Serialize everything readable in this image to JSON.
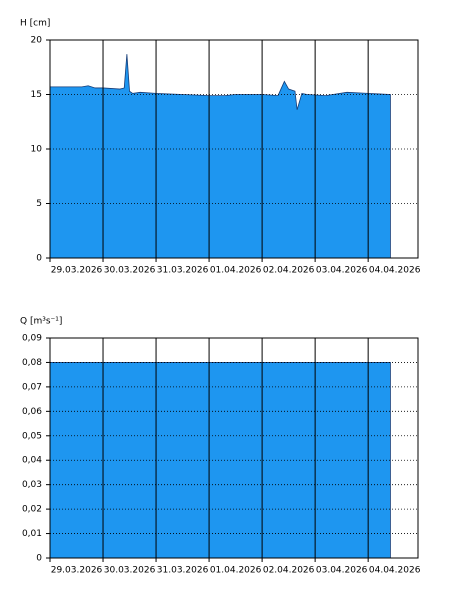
{
  "chart_data": [
    {
      "type": "area",
      "y_label": "H [cm]",
      "color": "#1e96f0",
      "grid": true,
      "x": [
        0,
        0.6,
        0.72,
        0.85,
        1.0,
        1.32,
        1.4,
        1.45,
        1.5,
        1.56,
        1.7,
        2.0,
        2.5,
        3.0,
        3.3,
        3.5,
        4.0,
        4.3,
        4.42,
        4.5,
        4.62,
        4.66,
        4.75,
        4.85,
        5.2,
        5.6,
        6.0,
        6.42
      ],
      "values": [
        15.7,
        15.7,
        15.8,
        15.6,
        15.6,
        15.5,
        15.6,
        18.7,
        15.3,
        15.1,
        15.2,
        15.1,
        15.0,
        14.9,
        14.9,
        15.0,
        15.0,
        14.9,
        16.2,
        15.5,
        15.3,
        13.6,
        15.1,
        15.0,
        14.9,
        15.2,
        15.1,
        15.0
      ],
      "xlim": [
        0,
        6.94
      ],
      "xticks": [
        {
          "value": 0,
          "label": "29.03.2026"
        },
        {
          "value": 1,
          "label": "30.03.2026"
        },
        {
          "value": 2,
          "label": "31.03.2026"
        },
        {
          "value": 3,
          "label": "01.04.2026"
        },
        {
          "value": 4,
          "label": "02.04.2026"
        },
        {
          "value": 5,
          "label": "03.04.2026"
        },
        {
          "value": 6,
          "label": "04.04.2026"
        }
      ],
      "ylim": [
        0,
        20
      ],
      "yticks": [
        0,
        5,
        10,
        15,
        20
      ]
    },
    {
      "type": "area",
      "y_label": "Q [m³s⁻¹]",
      "color": "#1e96f0",
      "grid": true,
      "x": [
        0,
        6.42
      ],
      "values": [
        0.08,
        0.08
      ],
      "xlim": [
        0,
        6.94
      ],
      "xticks": [
        {
          "value": 0,
          "label": "29.03.2026"
        },
        {
          "value": 1,
          "label": "30.03.2026"
        },
        {
          "value": 2,
          "label": "31.03.2026"
        },
        {
          "value": 3,
          "label": "01.04.2026"
        },
        {
          "value": 4,
          "label": "02.04.2026"
        },
        {
          "value": 5,
          "label": "03.04.2026"
        },
        {
          "value": 6,
          "label": "04.04.2026"
        }
      ],
      "ylim": [
        0,
        0.09
      ],
      "yticks": [
        0,
        {
          "value": 0.01,
          "label": "0,01"
        },
        {
          "value": 0.02,
          "label": "0,02"
        },
        {
          "value": 0.03,
          "label": "0,03"
        },
        {
          "value": 0.04,
          "label": "0,04"
        },
        {
          "value": 0.05,
          "label": "0,05"
        },
        {
          "value": 0.06,
          "label": "0,06"
        },
        {
          "value": 0.07,
          "label": "0,07"
        },
        {
          "value": 0.08,
          "label": "0,08"
        },
        {
          "value": 0.09,
          "label": "0,09"
        }
      ]
    }
  ]
}
